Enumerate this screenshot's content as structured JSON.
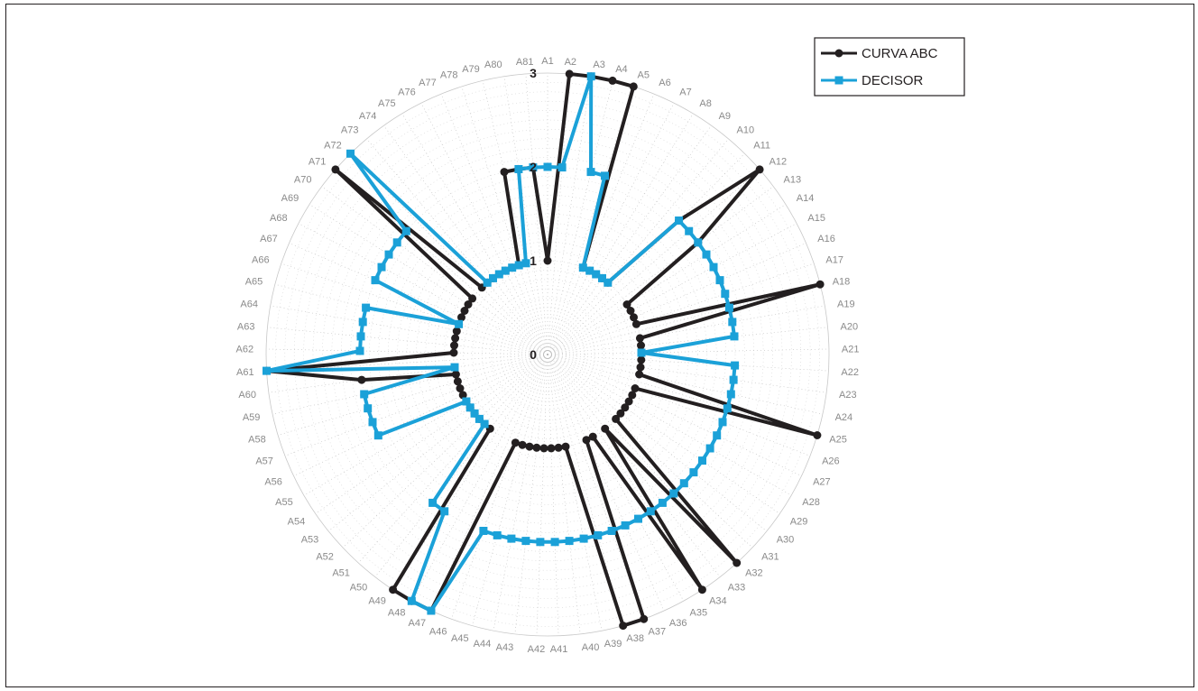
{
  "chart_data": {
    "type": "radar",
    "axes": [
      "A1",
      "A2",
      "A3",
      "A4",
      "A5",
      "A6",
      "A7",
      "A8",
      "A9",
      "A10",
      "A11",
      "A12",
      "A13",
      "A14",
      "A15",
      "A16",
      "A17",
      "A18",
      "A19",
      "A20",
      "A21",
      "A22",
      "A23",
      "A24",
      "A25",
      "A26",
      "A27",
      "A28",
      "A29",
      "A30",
      "A31",
      "A32",
      "A33",
      "A34",
      "A35",
      "A36",
      "A37",
      "A38",
      "A39",
      "A40",
      "A41",
      "A42",
      "A43",
      "A44",
      "A45",
      "A46",
      "A47",
      "A48",
      "A49",
      "A50",
      "A51",
      "A52",
      "A53",
      "A54",
      "A55",
      "A56",
      "A57",
      "A58",
      "A59",
      "A60",
      "A61",
      "A62",
      "A63",
      "A64",
      "A65",
      "A66",
      "A67",
      "A68",
      "A69",
      "A70",
      "A71",
      "A72",
      "A73",
      "A74",
      "A75",
      "A76",
      "A77",
      "A78",
      "A79",
      "A80",
      "A81"
    ],
    "rlim": [
      0,
      3
    ],
    "rticks": [
      0,
      1,
      2,
      3
    ],
    "rtick_labels": [
      "0",
      "1",
      "2",
      "3"
    ],
    "series": [
      {
        "name": "CURVA ABC",
        "color": "#231f20",
        "marker": "circle",
        "values": [
          1,
          3,
          3,
          3,
          3,
          1,
          1,
          1,
          1,
          1,
          2,
          3,
          2,
          1,
          1,
          1,
          1,
          3,
          1,
          1,
          1,
          1,
          1,
          1,
          3,
          1,
          1,
          1,
          1,
          1,
          1,
          3,
          1,
          3,
          1,
          1,
          3,
          3,
          1,
          1,
          1,
          1,
          1,
          1,
          1,
          1,
          3,
          3,
          3,
          1,
          1,
          1,
          1,
          1,
          1,
          1,
          1,
          1,
          1,
          2,
          3,
          1,
          1,
          1,
          1,
          1,
          1,
          1,
          1,
          1,
          3,
          1,
          1,
          1,
          1,
          1,
          1,
          1,
          2,
          2,
          2
        ]
      },
      {
        "name": "DECISOR",
        "color": "#1ba1d8",
        "marker": "square",
        "values": [
          2,
          2,
          3,
          2,
          2,
          1,
          1,
          1,
          1,
          1,
          2,
          2,
          2,
          2,
          2,
          2,
          2,
          2,
          2,
          2,
          1,
          2,
          2,
          2,
          2,
          2,
          2,
          2,
          2,
          2,
          2,
          2,
          2,
          2,
          2,
          2,
          2,
          2,
          2,
          2,
          2,
          2,
          2,
          2,
          2,
          2,
          3,
          3,
          2,
          2,
          1,
          1,
          1,
          1,
          1,
          2,
          2,
          2,
          2,
          1,
          3,
          2,
          2,
          2,
          2,
          1,
          2,
          2,
          2,
          2,
          2,
          3,
          1,
          1,
          1,
          1,
          1,
          1,
          1,
          2,
          2
        ]
      }
    ],
    "legend": {
      "position": "top-right",
      "entries": [
        "CURVA ABC",
        "DECISOR"
      ]
    },
    "grid": true
  }
}
